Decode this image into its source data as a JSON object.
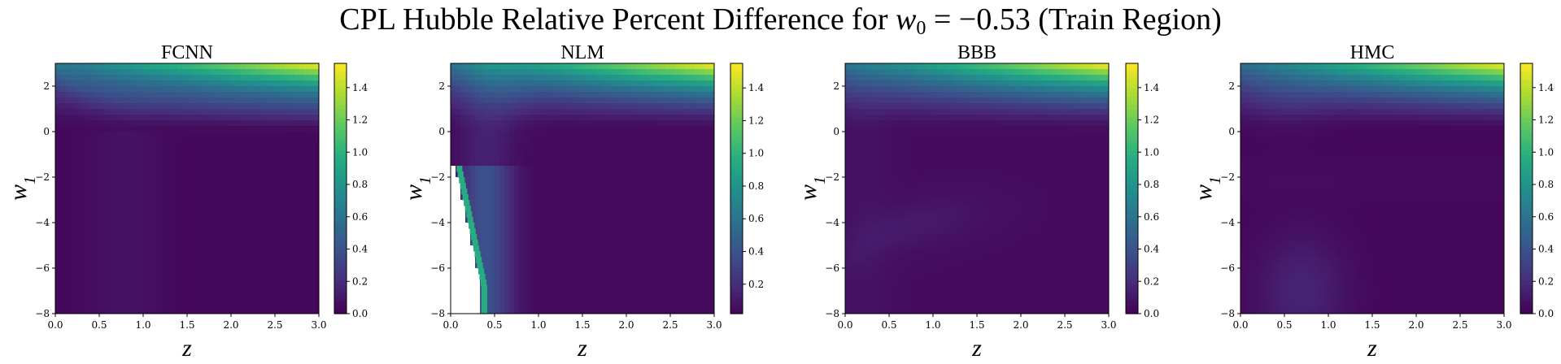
{
  "figure": {
    "title_prefix": "CPL Hubble Relative Percent Difference for ",
    "title_var": "w",
    "title_sub": "0",
    "title_suffix": " = −0.53 (Train Region)"
  },
  "chart_data": [
    {
      "type": "heatmap",
      "title": "FCNN",
      "xlabel": "z",
      "ylabel": "w1",
      "xlim": [
        0.0,
        3.0
      ],
      "ylim": [
        -8,
        3
      ],
      "xticks": [
        "0.0",
        "0.5",
        "1.0",
        "1.5",
        "2.0",
        "2.5",
        "3.0"
      ],
      "yticks": [
        "−8",
        "−6",
        "−4",
        "−2",
        "0",
        "2"
      ],
      "colorbar": {
        "range": [
          0.0,
          1.55
        ],
        "ticks": [
          "0.0",
          "0.2",
          "0.4",
          "0.6",
          "0.8",
          "1.0",
          "1.2",
          "1.4"
        ],
        "colormap": "viridis"
      },
      "max_value": 1.55,
      "hot_region": "top-right (high z, high w1)"
    },
    {
      "type": "heatmap",
      "title": "NLM",
      "xlabel": "z",
      "ylabel": "w1",
      "xlim": [
        0.0,
        3.0
      ],
      "ylim": [
        -8,
        3
      ],
      "xticks": [
        "0.0",
        "0.5",
        "1.0",
        "1.5",
        "2.0",
        "2.5",
        "3.0"
      ],
      "yticks": [
        "−8",
        "−6",
        "−4",
        "−2",
        "0",
        "2"
      ],
      "colorbar": {
        "range": [
          0.02,
          1.55
        ],
        "ticks": [
          "0.2",
          "0.4",
          "0.6",
          "0.8",
          "1.0",
          "1.2",
          "1.4"
        ],
        "colormap": "viridis"
      },
      "max_value": 1.55,
      "hot_region": "top-right (high z, high w1)",
      "missing_region": "low z, w1 below about −1.5 (blank cells)"
    },
    {
      "type": "heatmap",
      "title": "BBB",
      "xlabel": "z",
      "ylabel": "w1",
      "xlim": [
        0.0,
        3.0
      ],
      "ylim": [
        -8,
        3
      ],
      "xticks": [
        "0.0",
        "0.5",
        "1.0",
        "1.5",
        "2.0",
        "2.5",
        "3.0"
      ],
      "yticks": [
        "−8",
        "−6",
        "−4",
        "−2",
        "0",
        "2"
      ],
      "colorbar": {
        "range": [
          0.0,
          1.55
        ],
        "ticks": [
          "0.0",
          "0.2",
          "0.4",
          "0.6",
          "0.8",
          "1.0",
          "1.2",
          "1.4"
        ],
        "colormap": "viridis"
      },
      "max_value": 1.55,
      "hot_region": "top-right (high z, high w1)"
    },
    {
      "type": "heatmap",
      "title": "HMC",
      "xlabel": "z",
      "ylabel": "w1",
      "xlim": [
        0.0,
        3.0
      ],
      "ylim": [
        -8,
        3
      ],
      "xticks": [
        "0.0",
        "0.5",
        "1.0",
        "1.5",
        "2.0",
        "2.5",
        "3.0"
      ],
      "yticks": [
        "−8",
        "−6",
        "−4",
        "−2",
        "0",
        "2"
      ],
      "colorbar": {
        "range": [
          0.0,
          1.55
        ],
        "ticks": [
          "0.0",
          "0.2",
          "0.4",
          "0.6",
          "0.8",
          "1.0",
          "1.2",
          "1.4"
        ],
        "colormap": "viridis"
      },
      "max_value": 1.55,
      "hot_region": "top-right (high z, high w1)"
    }
  ]
}
